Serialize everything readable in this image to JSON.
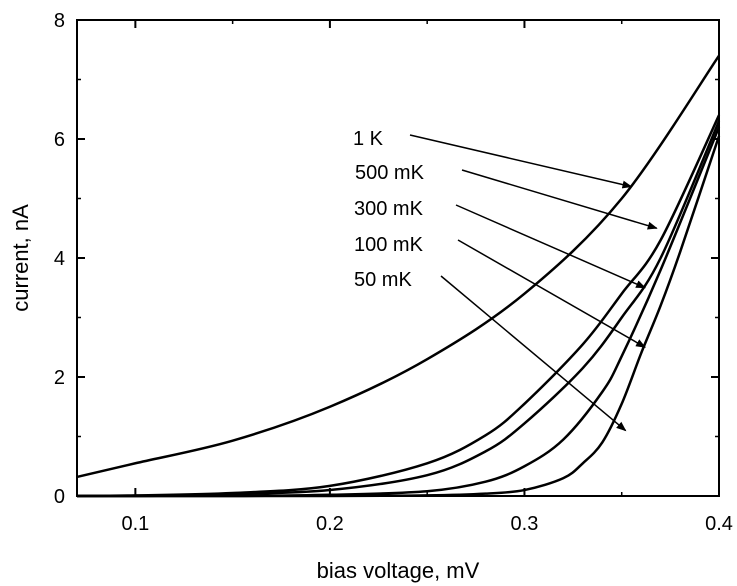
{
  "chart_data": {
    "type": "line",
    "xlabel": "bias voltage, mV",
    "ylabel": "current, nA",
    "xlim": [
      0.07,
      0.4
    ],
    "ylim": [
      0,
      8
    ],
    "x_ticks": [
      0.1,
      0.2,
      0.3,
      0.4
    ],
    "y_ticks": [
      0,
      2,
      4,
      6,
      8
    ],
    "grid": false,
    "legend": "none",
    "series": [
      {
        "name": "1 K",
        "x": [
          0.07,
          0.1,
          0.15,
          0.2,
          0.25,
          0.3,
          0.35,
          0.4
        ],
        "y": [
          0.32,
          0.55,
          0.93,
          1.5,
          2.3,
          3.4,
          5.0,
          7.4
        ],
        "arrow_to": [
          0.355,
          5.2
        ]
      },
      {
        "name": "500 mK",
        "x": [
          0.07,
          0.1,
          0.15,
          0.2,
          0.25,
          0.28,
          0.3,
          0.33,
          0.35,
          0.37,
          0.4
        ],
        "y": [
          0.0,
          0.01,
          0.05,
          0.17,
          0.55,
          1.02,
          1.55,
          2.55,
          3.4,
          4.3,
          6.4
        ],
        "arrow_to": [
          0.368,
          4.5
        ]
      },
      {
        "name": "300 mK",
        "x": [
          0.07,
          0.1,
          0.15,
          0.2,
          0.25,
          0.28,
          0.3,
          0.33,
          0.35,
          0.37,
          0.4
        ],
        "y": [
          0.0,
          0.0,
          0.03,
          0.1,
          0.35,
          0.75,
          1.22,
          2.15,
          3.0,
          4.0,
          6.3
        ],
        "arrow_to": [
          0.362,
          3.5
        ]
      },
      {
        "name": "100 mK",
        "x": [
          0.07,
          0.1,
          0.15,
          0.2,
          0.25,
          0.28,
          0.3,
          0.32,
          0.34,
          0.35,
          0.37,
          0.4
        ],
        "y": [
          0.0,
          0.0,
          0.0,
          0.02,
          0.08,
          0.24,
          0.5,
          0.95,
          1.75,
          2.35,
          3.8,
          6.2
        ],
        "arrow_to": [
          0.362,
          2.5
        ]
      },
      {
        "name": "50 mK",
        "x": [
          0.07,
          0.2,
          0.25,
          0.28,
          0.3,
          0.32,
          0.33,
          0.34,
          0.35,
          0.36,
          0.37,
          0.38,
          0.4
        ],
        "y": [
          0.0,
          0.0,
          0.01,
          0.04,
          0.1,
          0.3,
          0.55,
          0.9,
          1.55,
          2.4,
          3.2,
          4.1,
          6.05
        ],
        "arrow_to": [
          0.352,
          1.1
        ]
      }
    ]
  }
}
